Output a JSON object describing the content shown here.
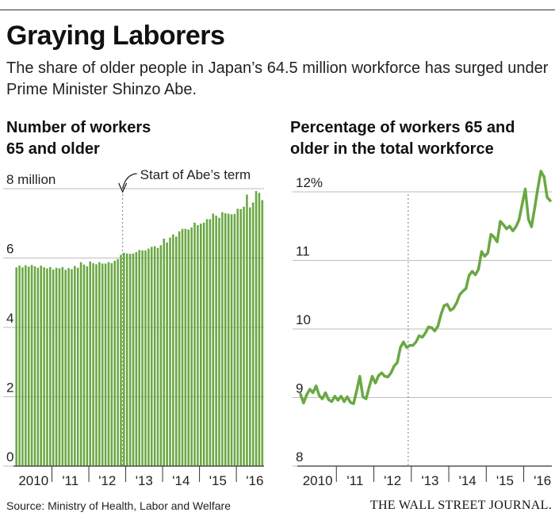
{
  "header": {
    "title": "Graying Laborers",
    "subtitle": "The share of older people in Japan’s 64.5 million workforce has surged under Prime Minister Shinzo Abe."
  },
  "left_chart": {
    "title_line1": "Number of workers",
    "title_line2": "65 and older",
    "annotation": "Start of Abe’s term"
  },
  "right_chart": {
    "title_line1": "Percentage of workers 65 and",
    "title_line2": "older in the total workforce"
  },
  "footer": {
    "source": "Source: Ministry of Health, Labor and Welfare",
    "publisher": "THE WALL STREET JOURNAL."
  },
  "colors": {
    "series": "#6aa843",
    "bar_edge": "#4f8a2f",
    "grid": "#bdbdbd",
    "text": "#222222"
  },
  "chart_data": [
    {
      "type": "bar",
      "title": "Number of workers 65 and older",
      "unit": "million",
      "x_tick_labels": [
        "2010",
        "'11",
        "'12",
        "'13",
        "'14",
        "'15",
        "'16"
      ],
      "ylim": [
        0,
        8
      ],
      "y_ticks": [
        0,
        2,
        4,
        6,
        8
      ],
      "y_tick_labels": [
        "0",
        "2",
        "4",
        "6",
        "8 million"
      ],
      "grid": true,
      "annotation": {
        "text": "Start of Abe’s term",
        "at_month_index": 35
      },
      "start": "2010-01",
      "values": [
        5.73,
        5.78,
        5.73,
        5.79,
        5.75,
        5.8,
        5.76,
        5.72,
        5.78,
        5.73,
        5.7,
        5.74,
        5.67,
        5.72,
        5.7,
        5.74,
        5.66,
        5.71,
        5.68,
        5.77,
        5.72,
        5.88,
        5.81,
        5.76,
        5.9,
        5.85,
        5.82,
        5.88,
        5.84,
        5.84,
        5.88,
        5.85,
        5.92,
        5.97,
        6.09,
        6.15,
        6.13,
        6.12,
        6.13,
        6.17,
        6.23,
        6.22,
        6.22,
        6.27,
        6.32,
        6.34,
        6.29,
        6.37,
        6.56,
        6.45,
        6.59,
        6.68,
        6.62,
        6.77,
        6.84,
        6.84,
        6.82,
        6.88,
        7.02,
        6.95,
        6.99,
        7.02,
        7.12,
        7.12,
        7.28,
        7.22,
        7.16,
        7.32,
        7.29,
        7.28,
        7.26,
        7.27,
        7.42,
        7.41,
        7.48,
        7.83,
        7.46,
        7.6,
        7.93,
        7.88,
        7.67
      ]
    },
    {
      "type": "line",
      "title": "Percentage of workers 65 and older in the total workforce",
      "unit": "%",
      "x_tick_labels": [
        "2010",
        "'11",
        "'12",
        "'13",
        "'14",
        "'15",
        "'16"
      ],
      "ylim": [
        8,
        12.3
      ],
      "y_ticks": [
        8,
        9,
        10,
        11,
        12
      ],
      "y_tick_labels": [
        "8",
        "9",
        "10",
        "11",
        "12%"
      ],
      "grid": true,
      "marker_month_index": 35,
      "start": "2010-01",
      "values": [
        9.05,
        8.92,
        9.04,
        9.12,
        9.07,
        9.17,
        9.03,
        8.98,
        9.07,
        8.97,
        8.94,
        9.02,
        8.96,
        9.02,
        8.94,
        9.01,
        8.93,
        8.91,
        9.1,
        9.31,
        9.01,
        8.98,
        9.15,
        9.31,
        9.21,
        9.32,
        9.36,
        9.31,
        9.3,
        9.36,
        9.46,
        9.51,
        9.73,
        9.81,
        9.73,
        9.76,
        9.76,
        9.81,
        9.9,
        9.88,
        9.94,
        10.03,
        10.02,
        9.97,
        10.04,
        10.21,
        10.34,
        10.36,
        10.27,
        10.3,
        10.38,
        10.5,
        10.55,
        10.59,
        10.78,
        10.84,
        10.79,
        10.87,
        11.13,
        11.06,
        11.11,
        11.38,
        11.34,
        11.27,
        11.57,
        11.52,
        11.46,
        11.5,
        11.43,
        11.49,
        11.59,
        11.82,
        12.04,
        11.6,
        11.49,
        11.76,
        12.05,
        12.3,
        12.22,
        11.92,
        11.87
      ]
    }
  ]
}
